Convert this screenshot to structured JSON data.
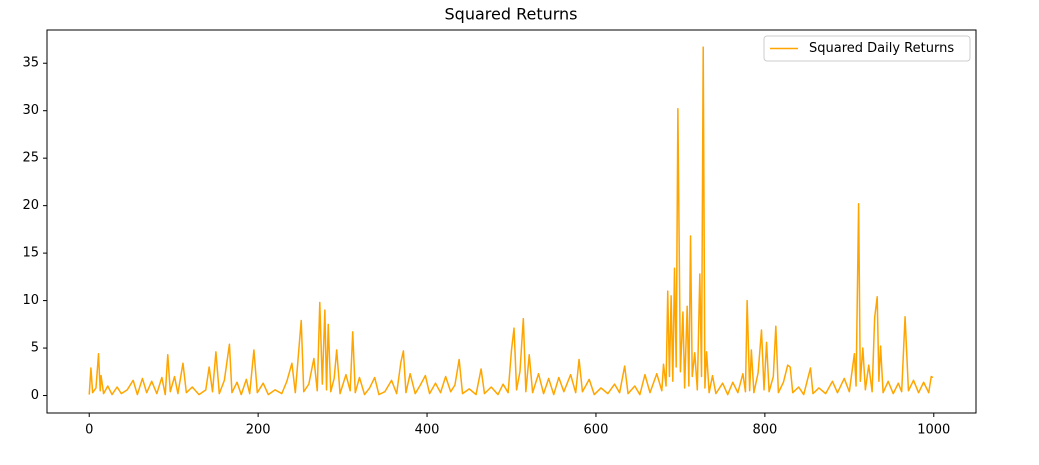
{
  "chart_data": {
    "type": "line",
    "title": "Squared Returns",
    "x": [
      0,
      2,
      4,
      8,
      11,
      13,
      14,
      17,
      22,
      27,
      33,
      38,
      45,
      52,
      57,
      63,
      68,
      74,
      80,
      86,
      90,
      93,
      96,
      101,
      105,
      111,
      115,
      122,
      130,
      138,
      142,
      146,
      150,
      154,
      160,
      166,
      169,
      175,
      180,
      186,
      190,
      195,
      199,
      206,
      212,
      220,
      228,
      234,
      240,
      244,
      251,
      254,
      260,
      266,
      270,
      273,
      276,
      279,
      281,
      283,
      286,
      290,
      293,
      297,
      304,
      309,
      312,
      315,
      320,
      326,
      332,
      338,
      343,
      350,
      358,
      364,
      369,
      372,
      375,
      380,
      386,
      392,
      398,
      403,
      410,
      416,
      422,
      428,
      433,
      438,
      442,
      450,
      458,
      464,
      468,
      476,
      484,
      490,
      496,
      500,
      503,
      506,
      510,
      514,
      517,
      521,
      525,
      532,
      538,
      544,
      550,
      556,
      562,
      570,
      576,
      580,
      584,
      592,
      598,
      606,
      614,
      622,
      628,
      634,
      638,
      646,
      652,
      658,
      664,
      672,
      678,
      680,
      683,
      685,
      687,
      689,
      691,
      693,
      695,
      697,
      700,
      703,
      705,
      708,
      710,
      712,
      714,
      717,
      720,
      723,
      725,
      727,
      729,
      731,
      734,
      738,
      742,
      750,
      756,
      762,
      768,
      774,
      777,
      779,
      782,
      784,
      787,
      792,
      796,
      799,
      802,
      805,
      810,
      813,
      816,
      822,
      827,
      830,
      833,
      840,
      846,
      854,
      857,
      864,
      872,
      880,
      886,
      894,
      900,
      906,
      908,
      911,
      913,
      916,
      919,
      923,
      927,
      930,
      933,
      935,
      937,
      940,
      946,
      952,
      958,
      962,
      966,
      968,
      970,
      976,
      982,
      988,
      994,
      997,
      999
    ],
    "series": [
      {
        "name": "Squared Daily Returns",
        "color": "#ffa500",
        "values": [
          0.1,
          2.9,
          0.3,
          0.8,
          4.4,
          0.5,
          2.1,
          0.2,
          1.0,
          0.1,
          0.9,
          0.2,
          0.6,
          1.6,
          0.1,
          1.8,
          0.3,
          1.5,
          0.2,
          1.9,
          0.1,
          4.3,
          0.4,
          2.0,
          0.2,
          3.4,
          0.3,
          0.9,
          0.1,
          0.6,
          3.0,
          0.4,
          4.6,
          0.2,
          1.6,
          5.4,
          0.3,
          1.4,
          0.1,
          1.7,
          0.2,
          4.8,
          0.3,
          1.3,
          0.1,
          0.6,
          0.2,
          1.5,
          3.4,
          0.3,
          7.9,
          0.4,
          1.2,
          3.9,
          0.5,
          9.8,
          1.2,
          9.0,
          0.6,
          7.5,
          0.4,
          1.8,
          4.8,
          0.2,
          2.2,
          0.5,
          6.7,
          0.3,
          1.9,
          0.1,
          0.8,
          1.9,
          0.1,
          0.4,
          1.6,
          0.2,
          3.5,
          4.7,
          0.3,
          2.3,
          0.2,
          1.1,
          2.1,
          0.2,
          1.3,
          0.3,
          2.0,
          0.4,
          1.1,
          3.8,
          0.2,
          0.7,
          0.1,
          2.8,
          0.2,
          0.9,
          0.1,
          1.2,
          0.3,
          4.8,
          7.1,
          0.6,
          2.5,
          8.1,
          0.4,
          4.3,
          0.3,
          2.3,
          0.2,
          1.8,
          0.1,
          1.9,
          0.4,
          2.2,
          0.3,
          3.8,
          0.4,
          1.7,
          0.1,
          0.8,
          0.2,
          1.2,
          0.3,
          3.1,
          0.2,
          1.0,
          0.1,
          2.2,
          0.3,
          2.3,
          0.5,
          3.3,
          1.0,
          11.0,
          2.0,
          10.5,
          1.5,
          13.4,
          3.0,
          30.2,
          2.5,
          8.8,
          0.8,
          9.4,
          1.0,
          16.8,
          2.0,
          4.5,
          0.6,
          12.8,
          2.0,
          36.7,
          0.8,
          4.6,
          0.3,
          2.1,
          0.2,
          1.3,
          0.1,
          1.4,
          0.3,
          2.3,
          0.4,
          10.0,
          0.5,
          4.8,
          0.3,
          2.4,
          6.9,
          0.6,
          5.6,
          0.4,
          2.0,
          7.3,
          0.3,
          1.4,
          3.2,
          3.0,
          0.3,
          0.9,
          0.1,
          2.9,
          0.2,
          0.8,
          0.2,
          1.5,
          0.3,
          1.8,
          0.4,
          4.4,
          1.0,
          20.2,
          1.5,
          5.0,
          0.6,
          3.2,
          0.4,
          8.2,
          10.4,
          1.5,
          5.2,
          0.3,
          1.5,
          0.2,
          1.3,
          0.4,
          8.3,
          4.4,
          0.5,
          1.6,
          0.3,
          1.4,
          0.3,
          2.0,
          1.9
        ]
      }
    ],
    "xlim": [
      -50,
      1050
    ],
    "ylim": [
      -1.84,
      38.5
    ],
    "xticks": [
      0,
      200,
      400,
      600,
      800,
      1000
    ],
    "yticks": [
      0,
      5,
      10,
      15,
      20,
      25,
      30,
      35
    ],
    "legend": "upper right",
    "grid": false
  }
}
